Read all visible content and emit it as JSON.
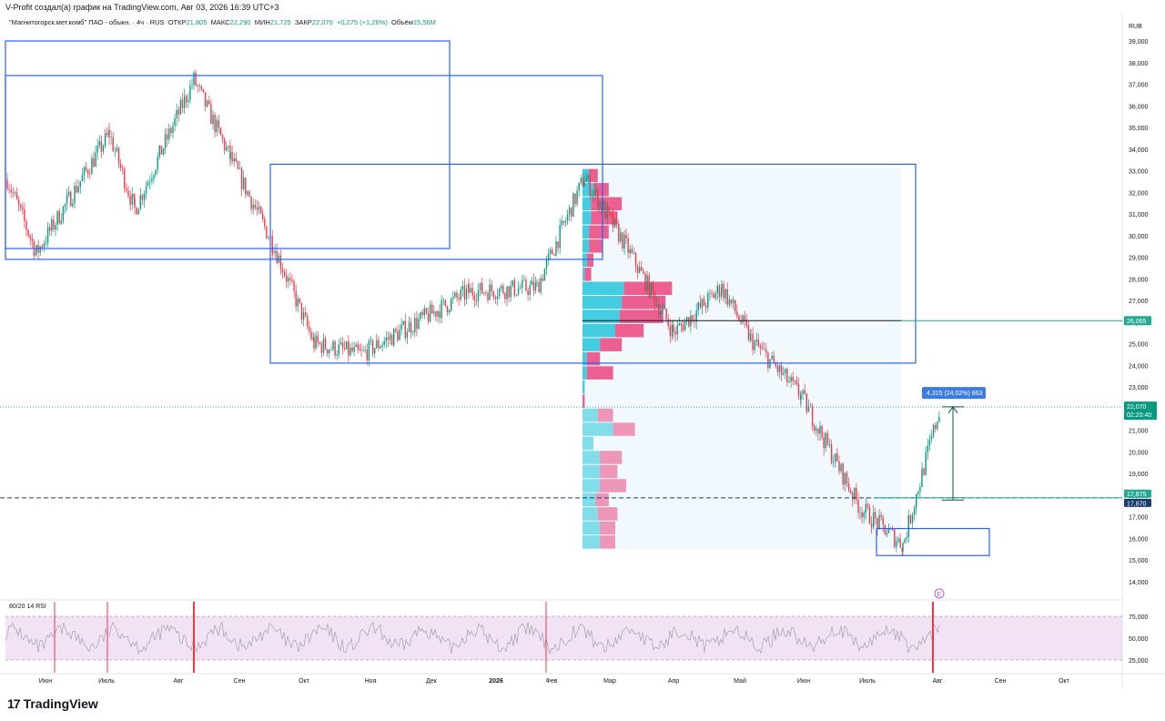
{
  "header": {
    "author_line": "V-Profit создал(а) график на TradingView.com, Авг 03, 2026 16:39 UTC+3",
    "symbol": "\"Магнитогорск.мет.комб\" ПАО - обыкн. · 4ч · RUS",
    "open_label": "ОТКР",
    "open": "21,805",
    "high_label": "МАКС",
    "high": "22,290",
    "low_label": "МИН",
    "low": "21,725",
    "close_label": "ЗАКР",
    "close": "22,070",
    "change": "+0,275 (+1,26%)",
    "volume_label": "Объём",
    "volume": "15,56M"
  },
  "currency": "RUB",
  "rsi": {
    "title": "80/20 14 RSI",
    "ticks": [
      "75,000",
      "50,000",
      "25,000"
    ]
  },
  "footer": {
    "logo_mark": "17",
    "brand": "TradingView"
  },
  "colors": {
    "up": "#089981",
    "down": "#f23645",
    "zone": "#2962ff",
    "vp_blue": "#26c6da",
    "vp_pink": "#e91e63",
    "rsi_band": "#e1bee7"
  },
  "chart_data": {
    "type": "candlestick",
    "currency": "RUB",
    "y_ticks": [
      "39,000",
      "38,000",
      "37,000",
      "36,000",
      "35,000",
      "34,000",
      "33,000",
      "32,000",
      "31,000",
      "30,000",
      "29,000",
      "28,000",
      "27,000",
      "26,000",
      "25,000",
      "24,000",
      "23,000",
      "22,000",
      "21,000",
      "20,000",
      "19,000",
      "18,000",
      "17,000",
      "16,000",
      "15,000",
      "14,000"
    ],
    "x_ticks": [
      "Июн",
      "Июль",
      "Авг",
      "Сен",
      "Окт",
      "Ноя",
      "Дек",
      "2026",
      "Фев",
      "Мар",
      "Апр",
      "Май",
      "Июн",
      "Июль",
      "Авг",
      "Сен",
      "Окт"
    ],
    "ylim": [
      13.7,
      39.7
    ],
    "price_path": [
      {
        "t": "Июн 2025",
        "price": 32.6
      },
      {
        "t": "Июн 2025",
        "price": 29.2
      },
      {
        "t": "Июль 2025",
        "price": 34.7
      },
      {
        "t": "Июль 2025",
        "price": 31.2
      },
      {
        "t": "Авг 2025",
        "price": 37.2
      },
      {
        "t": "Сен 2025",
        "price": 33.6
      },
      {
        "t": "Окт 2025",
        "price": 29.6
      },
      {
        "t": "Окт 2025",
        "price": 25.0
      },
      {
        "t": "Ноя 2025",
        "price": 24.5
      },
      {
        "t": "Дек 2025",
        "price": 27.4
      },
      {
        "t": "2026",
        "price": 27.6
      },
      {
        "t": "Фев 2026",
        "price": 32.7
      },
      {
        "t": "Мар 2026",
        "price": 29.5
      },
      {
        "t": "Апр 2026",
        "price": 25.5
      },
      {
        "t": "Апр 2026",
        "price": 27.6
      },
      {
        "t": "Май 2026",
        "price": 25.2
      },
      {
        "t": "Июн 2026",
        "price": 22.6
      },
      {
        "t": "Июль 2026",
        "price": 17.4
      },
      {
        "t": "Июль 2026",
        "price": 15.7
      },
      {
        "t": "Авг 2026",
        "price": 22.07
      }
    ],
    "last_price": "22,070",
    "countdown": "02:20:40",
    "levels": [
      {
        "label": "26,065",
        "price": 26.065
      },
      {
        "label": "17,875",
        "price": 17.875
      },
      {
        "label": "17,870",
        "price": 17.87
      }
    ],
    "measure": {
      "label": "4,315 (24,02%) 863",
      "from": 17.77,
      "to": 22.08
    },
    "zones": [
      {
        "price_top": 39.0,
        "price_bottom": 29.4
      },
      {
        "price_top": 37.4,
        "price_bottom": 28.9
      },
      {
        "price_top": 33.3,
        "price_bottom": 24.1
      },
      {
        "price_top": 16.45,
        "price_bottom": 15.2
      }
    ],
    "volume_profile": [
      {
        "buy": 3,
        "sell": 4
      },
      {
        "buy": 5,
        "sell": 7
      },
      {
        "buy": 4,
        "sell": 14
      },
      {
        "buy": 4,
        "sell": 12
      },
      {
        "buy": 3,
        "sell": 9
      },
      {
        "buy": 3,
        "sell": 6
      },
      {
        "buy": 2,
        "sell": 3
      },
      {
        "buy": 1,
        "sell": 3
      },
      {
        "buy": 19,
        "sell": 22
      },
      {
        "buy": 18,
        "sell": 20
      },
      {
        "buy": 17,
        "sell": 20
      },
      {
        "buy": 15,
        "sell": 13
      },
      {
        "buy": 8,
        "sell": 10
      },
      {
        "buy": 2,
        "sell": 6
      },
      {
        "buy": 2,
        "sell": 12
      },
      {
        "buy": 1,
        "sell": 0
      },
      {
        "buy": 0,
        "sell": 1
      },
      {
        "buy": 7,
        "sell": 7
      },
      {
        "buy": 14,
        "sell": 10
      },
      {
        "buy": 5,
        "sell": 0
      },
      {
        "buy": 8,
        "sell": 10
      },
      {
        "buy": 8,
        "sell": 8
      },
      {
        "buy": 8,
        "sell": 12
      },
      {
        "buy": 6,
        "sell": 6
      },
      {
        "buy": 7,
        "sell": 9
      },
      {
        "buy": 8,
        "sell": 7
      },
      {
        "buy": 8,
        "sell": 7
      }
    ],
    "rsi_spikes": [
      "Июн",
      "Июль",
      "Авг",
      "Фев",
      "Авг"
    ],
    "earnings_marker": "E"
  }
}
